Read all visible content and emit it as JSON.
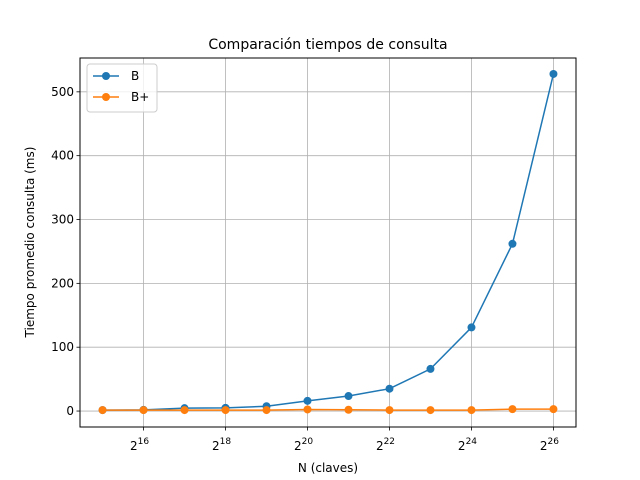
{
  "chart_data": {
    "type": "line",
    "title": "Comparación tiempos de consulta",
    "xlabel": "N (claves)",
    "ylabel": "Tiempo promedio consulta (ms)",
    "x_scale": "log2",
    "x": [
      32768,
      65536,
      131072,
      262144,
      524288,
      1048576,
      2097152,
      4194304,
      8388608,
      16777216,
      33554432,
      67108864
    ],
    "x_tick_exponents": [
      16,
      18,
      20,
      22,
      24,
      26
    ],
    "x_tick_base": "2",
    "y_ticks": [
      0,
      100,
      200,
      300,
      400,
      500
    ],
    "ylim": [
      -25,
      553
    ],
    "grid": true,
    "legend_position": "top-left",
    "series": [
      {
        "name": "B",
        "color": "#1f77b4",
        "values": [
          1.5,
          1.8,
          4.5,
          5.0,
          7.5,
          16,
          23.5,
          35,
          66,
          131,
          262,
          528
        ]
      },
      {
        "name": "B+",
        "color": "#ff7f0e",
        "values": [
          1.5,
          1.5,
          1.5,
          1.5,
          1.5,
          2.5,
          2.0,
          1.5,
          1.5,
          1.5,
          3.0,
          3.0
        ]
      }
    ]
  }
}
